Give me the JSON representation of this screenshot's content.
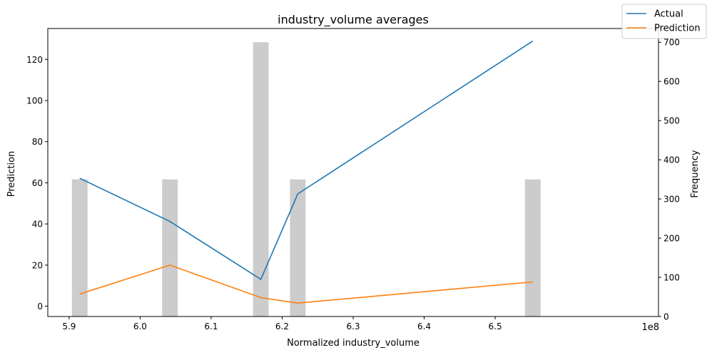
{
  "chart_data": {
    "type": "line+bar",
    "title": "industry_volume averages",
    "xlabel": "Normalized industry_volume",
    "ylabel_left": "Prediction",
    "ylabel_right": "Frequency",
    "x_offset_label": "1e8",
    "xlim": [
      5.87,
      6.73
    ],
    "ylim_left": [
      -5,
      135
    ],
    "ylim_right": [
      0,
      735
    ],
    "x_ticks": [
      5.9,
      6.0,
      6.1,
      6.2,
      6.3,
      6.4,
      6.5
    ],
    "x_tick_labels": [
      "5.9",
      "6.0",
      "6.1",
      "6.2",
      "6.3",
      "6.4",
      "6.5"
    ],
    "y_left_ticks": [
      0,
      20,
      40,
      60,
      80,
      100,
      120
    ],
    "y_left_tick_labels": [
      "0",
      "20",
      "40",
      "60",
      "80",
      "100",
      "120"
    ],
    "y_right_ticks": [
      0,
      100,
      200,
      300,
      400,
      500,
      600,
      700
    ],
    "y_right_tick_labels": [
      "0",
      "100",
      "200",
      "300",
      "400",
      "500",
      "600",
      "700"
    ],
    "histogram": {
      "color": "#cccccc",
      "bar_width": 0.022,
      "bars": [
        {
          "x": 5.915,
          "count": 350
        },
        {
          "x": 6.042,
          "count": 350
        },
        {
          "x": 6.17,
          "count": 700
        },
        {
          "x": 6.222,
          "count": 350
        },
        {
          "x": 6.553,
          "count": 350
        }
      ]
    },
    "series": [
      {
        "name": "Actual",
        "color": "#1f77b4",
        "x": [
          5.915,
          6.042,
          6.17,
          6.222,
          6.553
        ],
        "values": [
          62.2,
          41.2,
          13.1,
          54.6,
          128.9
        ]
      },
      {
        "name": "Prediction",
        "color": "#ff7f0e",
        "x": [
          5.915,
          6.042,
          6.17,
          6.222,
          6.553
        ],
        "values": [
          5.9,
          20.0,
          4.2,
          1.5,
          11.8
        ]
      }
    ],
    "legend_position": "top-right"
  }
}
